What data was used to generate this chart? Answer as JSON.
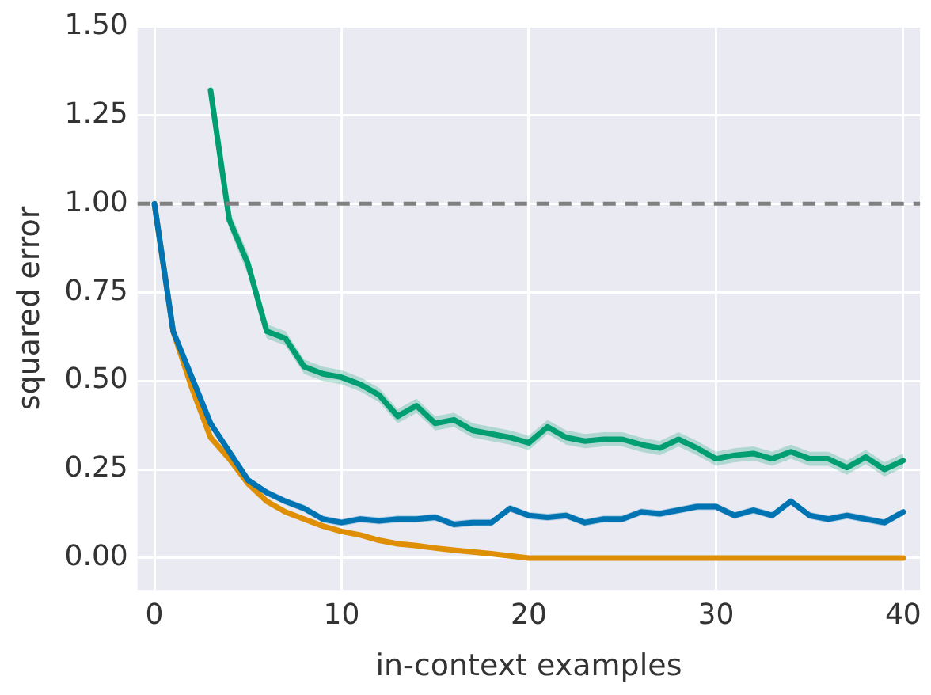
{
  "chart_data": {
    "type": "line",
    "xlabel": "in-context examples",
    "ylabel": "squared error",
    "x": [
      0,
      1,
      2,
      3,
      4,
      5,
      6,
      7,
      8,
      9,
      10,
      11,
      12,
      13,
      14,
      15,
      16,
      17,
      18,
      19,
      20,
      21,
      22,
      23,
      24,
      25,
      26,
      27,
      28,
      29,
      30,
      31,
      32,
      33,
      34,
      35,
      36,
      37,
      38,
      39,
      40
    ],
    "series": [
      {
        "color": "#029e73",
        "values": [
          null,
          null,
          null,
          1.32,
          0.955,
          0.83,
          0.64,
          0.62,
          0.54,
          0.52,
          0.51,
          0.49,
          0.46,
          0.4,
          0.43,
          0.38,
          0.39,
          0.36,
          0.35,
          0.34,
          0.325,
          0.37,
          0.34,
          0.33,
          0.335,
          0.335,
          0.32,
          0.31,
          0.335,
          0.31,
          0.28,
          0.29,
          0.295,
          0.28,
          0.3,
          0.28,
          0.28,
          0.255,
          0.285,
          0.25,
          0.275
        ],
        "lower": [
          null,
          null,
          null,
          1.3,
          0.93,
          0.8,
          0.62,
          0.6,
          0.52,
          0.5,
          0.49,
          0.47,
          0.44,
          0.38,
          0.41,
          0.36,
          0.37,
          0.34,
          0.33,
          0.32,
          0.305,
          0.35,
          0.32,
          0.31,
          0.315,
          0.315,
          0.3,
          0.29,
          0.315,
          0.29,
          0.26,
          0.27,
          0.275,
          0.26,
          0.28,
          0.26,
          0.26,
          0.235,
          0.265,
          0.23,
          0.255
        ],
        "upper": [
          null,
          null,
          null,
          1.34,
          0.98,
          0.86,
          0.66,
          0.64,
          0.56,
          0.54,
          0.53,
          0.51,
          0.48,
          0.42,
          0.45,
          0.4,
          0.41,
          0.38,
          0.37,
          0.36,
          0.345,
          0.39,
          0.36,
          0.35,
          0.355,
          0.355,
          0.34,
          0.33,
          0.355,
          0.33,
          0.3,
          0.31,
          0.315,
          0.3,
          0.32,
          0.3,
          0.3,
          0.275,
          0.305,
          0.27,
          0.295
        ]
      },
      {
        "color": "#0173b2",
        "values": [
          1.0,
          0.64,
          0.51,
          0.38,
          0.3,
          0.22,
          0.185,
          0.16,
          0.14,
          0.11,
          0.1,
          0.11,
          0.105,
          0.11,
          0.11,
          0.115,
          0.095,
          0.1,
          0.1,
          0.14,
          0.12,
          0.115,
          0.12,
          0.1,
          0.11,
          0.11,
          0.13,
          0.125,
          0.135,
          0.145,
          0.145,
          0.12,
          0.135,
          0.12,
          0.16,
          0.12,
          0.11,
          0.12,
          0.11,
          0.1,
          0.13
        ],
        "lower": [
          null,
          null,
          null,
          0.37,
          0.29,
          0.21,
          0.175,
          0.15,
          0.13,
          0.1,
          0.09,
          0.1,
          0.095,
          0.1,
          0.1,
          0.105,
          0.085,
          0.09,
          0.09,
          0.13,
          0.11,
          0.105,
          0.11,
          0.09,
          0.1,
          0.1,
          0.12,
          0.115,
          0.125,
          0.135,
          0.135,
          0.11,
          0.125,
          0.11,
          0.15,
          0.11,
          0.1,
          0.11,
          0.1,
          0.09,
          0.12
        ],
        "upper": [
          null,
          null,
          null,
          0.39,
          0.31,
          0.23,
          0.195,
          0.17,
          0.15,
          0.12,
          0.11,
          0.12,
          0.115,
          0.12,
          0.12,
          0.125,
          0.105,
          0.11,
          0.11,
          0.15,
          0.13,
          0.125,
          0.13,
          0.11,
          0.12,
          0.12,
          0.14,
          0.135,
          0.145,
          0.155,
          0.155,
          0.13,
          0.145,
          0.13,
          0.17,
          0.13,
          0.12,
          0.13,
          0.12,
          0.11,
          0.14
        ]
      },
      {
        "color": "#de8f05",
        "values": [
          1.0,
          0.64,
          0.48,
          0.34,
          0.28,
          0.21,
          0.16,
          0.13,
          0.11,
          0.09,
          0.075,
          0.065,
          0.05,
          0.04,
          0.035,
          0.028,
          0.022,
          0.017,
          0.012,
          0.006,
          0,
          0,
          0,
          0,
          0,
          0,
          0,
          0,
          0,
          0,
          0,
          0,
          0,
          0,
          0,
          0,
          0,
          0,
          0,
          0,
          0
        ]
      }
    ],
    "xlim": [
      -0.9,
      40.9
    ],
    "ylim": [
      -0.09,
      1.5
    ],
    "xticks": [
      0,
      10,
      20,
      30,
      40
    ],
    "yticks": [
      {
        "value": 0,
        "label": "0.00"
      },
      {
        "value": 0.25,
        "label": "0.25"
      },
      {
        "value": 0.5,
        "label": "0.50"
      },
      {
        "value": 0.75,
        "label": "0.75"
      },
      {
        "value": 1,
        "label": "1.00"
      },
      {
        "value": 1.25,
        "label": "1.25"
      },
      {
        "value": 1.5,
        "label": "1.50"
      }
    ],
    "ref_lines": [
      {
        "axis": "y",
        "value": 1,
        "color": "#808080",
        "line_style": "dashed"
      }
    ],
    "grid": true,
    "legend": false,
    "marker": "none",
    "line_style": "solid"
  }
}
